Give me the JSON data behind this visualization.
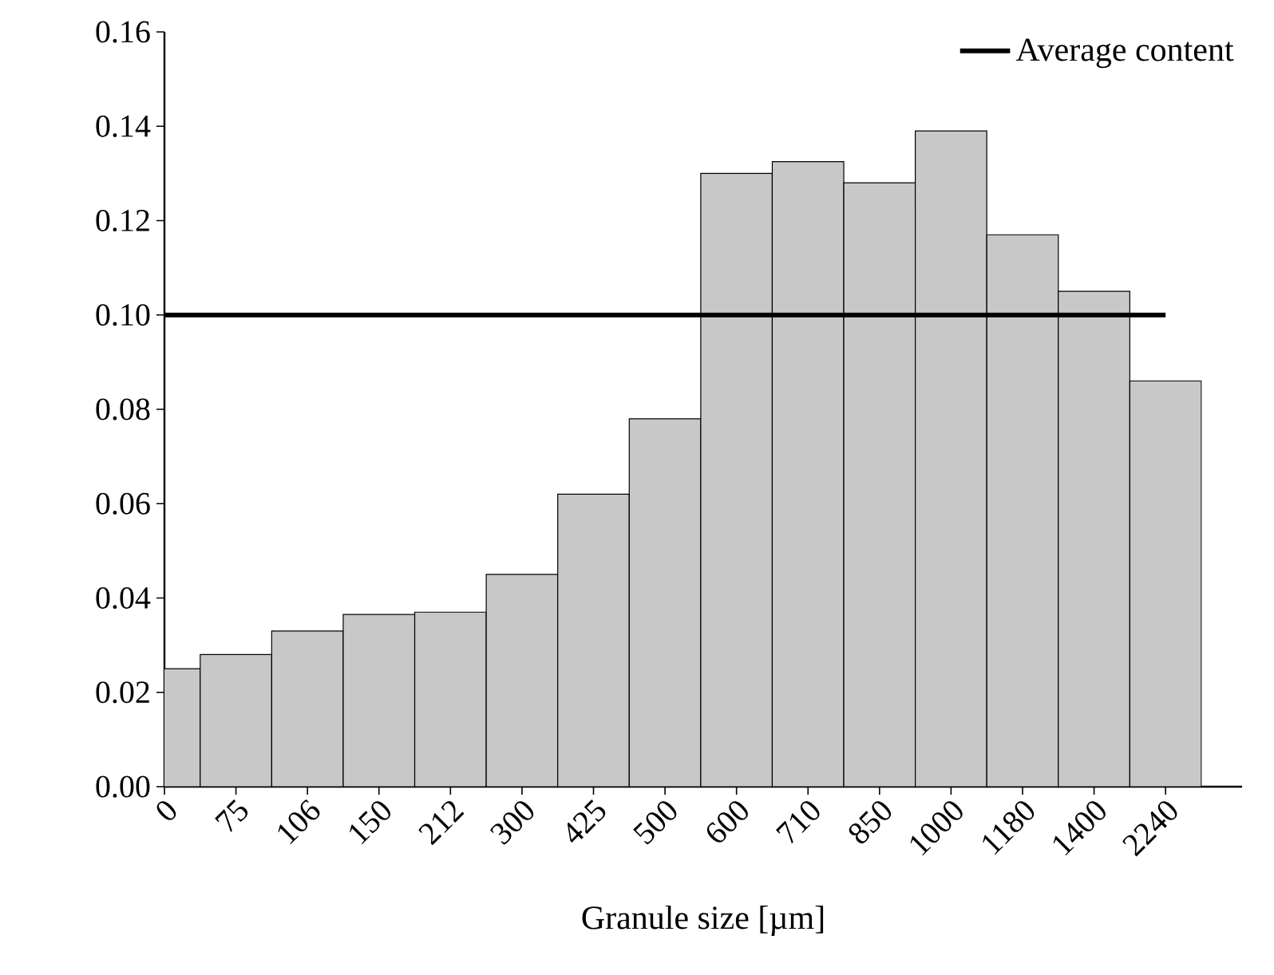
{
  "chart_data": {
    "type": "bar",
    "xlabel": "Granule size [µm]",
    "categories": [
      "0",
      "75",
      "106",
      "150",
      "212",
      "300",
      "425",
      "500",
      "600",
      "710",
      "850",
      "1000",
      "1180",
      "1400",
      "2240"
    ],
    "values": [
      0.025,
      0.028,
      0.033,
      0.0365,
      0.037,
      0.045,
      0.062,
      0.078,
      0.13,
      0.1325,
      0.128,
      0.139,
      0.117,
      0.105,
      0.086
    ],
    "color": "#c8c8c8",
    "ylim": [
      0,
      0.16
    ],
    "yticks": [
      {
        "value": 0,
        "label": "0.00"
      },
      {
        "value": 0.02,
        "label": "0.02"
      },
      {
        "value": 0.04,
        "label": "0.04"
      },
      {
        "value": 0.06,
        "label": "0.06"
      },
      {
        "value": 0.08,
        "label": "0.08"
      },
      {
        "value": 0.1,
        "label": "0.10"
      },
      {
        "value": 0.12,
        "label": "0.12"
      },
      {
        "value": 0.14,
        "label": "0.14"
      },
      {
        "value": 0.16,
        "label": "0.16"
      }
    ],
    "ref_lines": [
      {
        "axis": "y",
        "value": 0.1,
        "label": "Average content",
        "color": "#000000"
      }
    ],
    "legend": "top right"
  }
}
